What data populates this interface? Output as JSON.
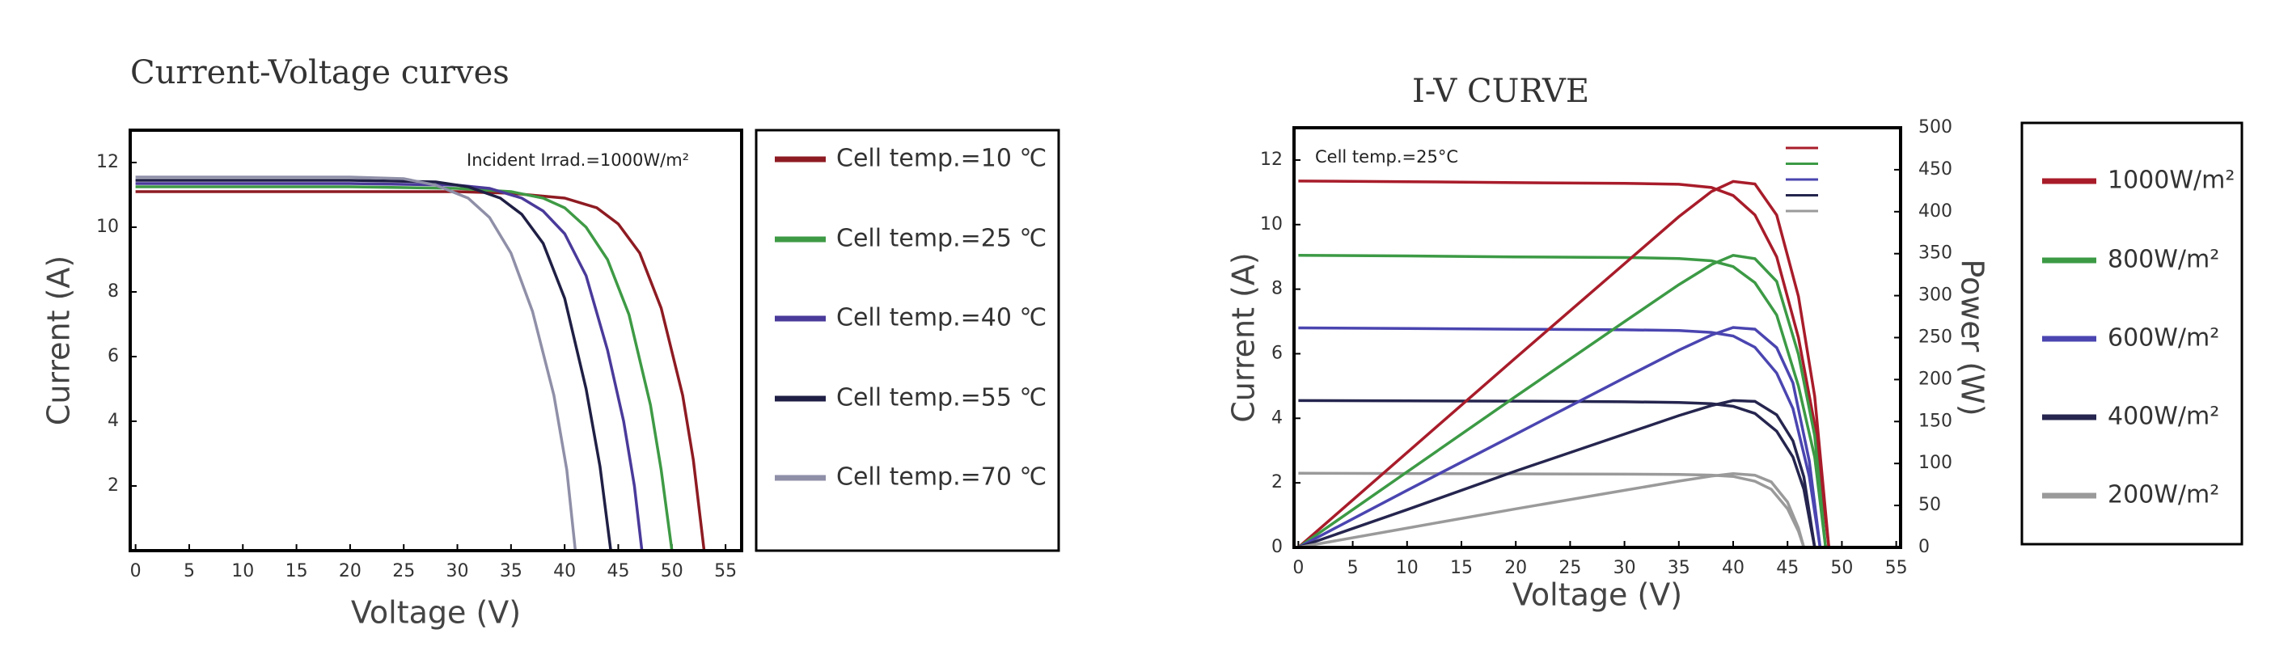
{
  "chart_data": [
    {
      "type": "line",
      "title": "Current-Voltage curves",
      "annotation": "Incident Irrad.=1000W/m²",
      "x_label": "Voltage (V)",
      "y_label": "Current (A)",
      "xlim": [
        -0.5,
        56.5
      ],
      "xticks": [
        0,
        5,
        10,
        15,
        20,
        25,
        30,
        35,
        40,
        45,
        50,
        55
      ],
      "ylim": [
        0,
        13
      ],
      "yticks": [
        2,
        4,
        6,
        8,
        10,
        12
      ],
      "series": [
        {
          "name": "Cell temp.=10 ℃",
          "color": "#8e1b22",
          "x": [
            0,
            10,
            20,
            30,
            35,
            40,
            43,
            45,
            47,
            49,
            51,
            52,
            53
          ],
          "values": [
            11.1,
            11.1,
            11.1,
            11.1,
            11.05,
            10.9,
            10.6,
            10.1,
            9.2,
            7.5,
            4.8,
            2.8,
            0
          ]
        },
        {
          "name": "Cell temp.=25 ℃",
          "color": "#3e9a45",
          "x": [
            0,
            10,
            20,
            30,
            35,
            38,
            40,
            42,
            44,
            46,
            48,
            49,
            50
          ],
          "values": [
            11.25,
            11.25,
            11.25,
            11.2,
            11.1,
            10.9,
            10.6,
            10.0,
            9.0,
            7.3,
            4.5,
            2.5,
            0
          ]
        },
        {
          "name": "Cell temp.=40 ℃",
          "color": "#4a3a9a",
          "x": [
            0,
            10,
            20,
            30,
            33,
            36,
            38,
            40,
            42,
            44,
            45.5,
            46.5,
            47.2
          ],
          "values": [
            11.35,
            11.35,
            11.35,
            11.3,
            11.2,
            10.9,
            10.5,
            9.8,
            8.5,
            6.2,
            4.0,
            2.0,
            0
          ]
        },
        {
          "name": "Cell temp.=55 ℃",
          "color": "#1f1f45",
          "x": [
            0,
            10,
            20,
            28,
            31,
            34,
            36,
            38,
            40,
            42,
            43.3,
            44.3
          ],
          "values": [
            11.45,
            11.45,
            11.45,
            11.4,
            11.25,
            10.9,
            10.4,
            9.5,
            7.8,
            5.0,
            2.6,
            0
          ]
        },
        {
          "name": "Cell temp.=70 ℃",
          "color": "#8f8fa8",
          "x": [
            0,
            10,
            20,
            25,
            28,
            31,
            33,
            35,
            37,
            39,
            40.2,
            41
          ],
          "values": [
            11.55,
            11.55,
            11.55,
            11.5,
            11.3,
            10.9,
            10.3,
            9.2,
            7.4,
            4.8,
            2.5,
            0
          ]
        }
      ]
    },
    {
      "type": "line",
      "title": "I-V CURVE",
      "annotation": "Cell temp.=25°C",
      "x_label": "Voltage (V)",
      "y_label": "Current (A)",
      "y2_label": "Power (W)",
      "xlim": [
        -0.4,
        55.4
      ],
      "xticks": [
        0,
        5,
        10,
        15,
        20,
        25,
        30,
        35,
        40,
        45,
        50,
        55
      ],
      "ylim": [
        0,
        13
      ],
      "yticks": [
        0,
        2,
        4,
        6,
        8,
        10,
        12
      ],
      "y2lim": [
        0,
        500
      ],
      "y2ticks": [
        0,
        50,
        100,
        150,
        200,
        250,
        300,
        350,
        400,
        450,
        500
      ],
      "series": [
        {
          "name": "1000W/m²",
          "color": "#a81c2a",
          "x": [
            0,
            10,
            20,
            30,
            35,
            38,
            40,
            42,
            44,
            46,
            47.5,
            48.8
          ],
          "values": [
            11.35,
            11.33,
            11.3,
            11.28,
            11.25,
            11.15,
            10.9,
            10.3,
            9.0,
            6.5,
            3.8,
            0
          ]
        },
        {
          "name": "800W/m²",
          "color": "#3c9a45",
          "x": [
            0,
            10,
            20,
            30,
            35,
            38,
            40,
            42,
            44,
            46,
            47.5,
            48.5
          ],
          "values": [
            9.05,
            9.03,
            9.0,
            8.98,
            8.95,
            8.88,
            8.7,
            8.2,
            7.2,
            5.0,
            2.8,
            0
          ]
        },
        {
          "name": "600W/m²",
          "color": "#4a45b0",
          "x": [
            0,
            10,
            20,
            30,
            35,
            38,
            40,
            42,
            44,
            45.5,
            47,
            48
          ],
          "values": [
            6.8,
            6.78,
            6.76,
            6.74,
            6.72,
            6.66,
            6.55,
            6.2,
            5.4,
            4.3,
            2.2,
            0
          ]
        },
        {
          "name": "400W/m²",
          "color": "#25254f",
          "x": [
            0,
            10,
            20,
            30,
            35,
            38,
            40,
            42,
            44,
            45.5,
            46.5,
            47.5
          ],
          "values": [
            4.55,
            4.54,
            4.53,
            4.51,
            4.49,
            4.45,
            4.37,
            4.15,
            3.6,
            2.8,
            1.8,
            0
          ]
        },
        {
          "name": "200W/m²",
          "color": "#9a9a9a",
          "x": [
            0,
            10,
            20,
            30,
            35,
            38,
            40,
            42,
            43.5,
            45,
            46,
            46.5
          ],
          "values": [
            2.3,
            2.29,
            2.28,
            2.27,
            2.26,
            2.24,
            2.2,
            2.05,
            1.8,
            1.2,
            0.5,
            0
          ]
        },
        {
          "color": "#a81c2a",
          "axis": "y2",
          "x": [
            0,
            10,
            20,
            30,
            35,
            38,
            40,
            42,
            44,
            46,
            47.5,
            48.8
          ],
          "values": [
            0,
            113,
            226,
            338,
            394,
            424,
            436,
            433,
            396,
            299,
            180,
            0
          ]
        },
        {
          "color": "#3c9a45",
          "axis": "y2",
          "x": [
            0,
            10,
            20,
            30,
            35,
            38,
            40,
            42,
            44,
            46,
            47.5,
            48.5
          ],
          "values": [
            0,
            90,
            180,
            269,
            313,
            337,
            348,
            344,
            317,
            230,
            133,
            0
          ]
        },
        {
          "color": "#4a45b0",
          "axis": "y2",
          "x": [
            0,
            10,
            20,
            30,
            35,
            38,
            40,
            42,
            44,
            45.5,
            47,
            48
          ],
          "values": [
            0,
            68,
            135,
            202,
            235,
            253,
            262,
            260,
            238,
            196,
            103,
            0
          ]
        },
        {
          "color": "#25254f",
          "axis": "y2",
          "x": [
            0,
            10,
            20,
            30,
            35,
            38,
            40,
            42,
            44,
            45.5,
            46.5,
            47.5
          ],
          "values": [
            0,
            45,
            91,
            135,
            157,
            169,
            175,
            174,
            158,
            127,
            84,
            0
          ]
        },
        {
          "color": "#9a9a9a",
          "axis": "y2",
          "x": [
            0,
            10,
            20,
            30,
            35,
            38,
            40,
            42,
            43.5,
            45,
            46,
            46.5
          ],
          "values": [
            0,
            23,
            46,
            68,
            79,
            85,
            88,
            86,
            78,
            54,
            23,
            0
          ]
        }
      ]
    }
  ]
}
